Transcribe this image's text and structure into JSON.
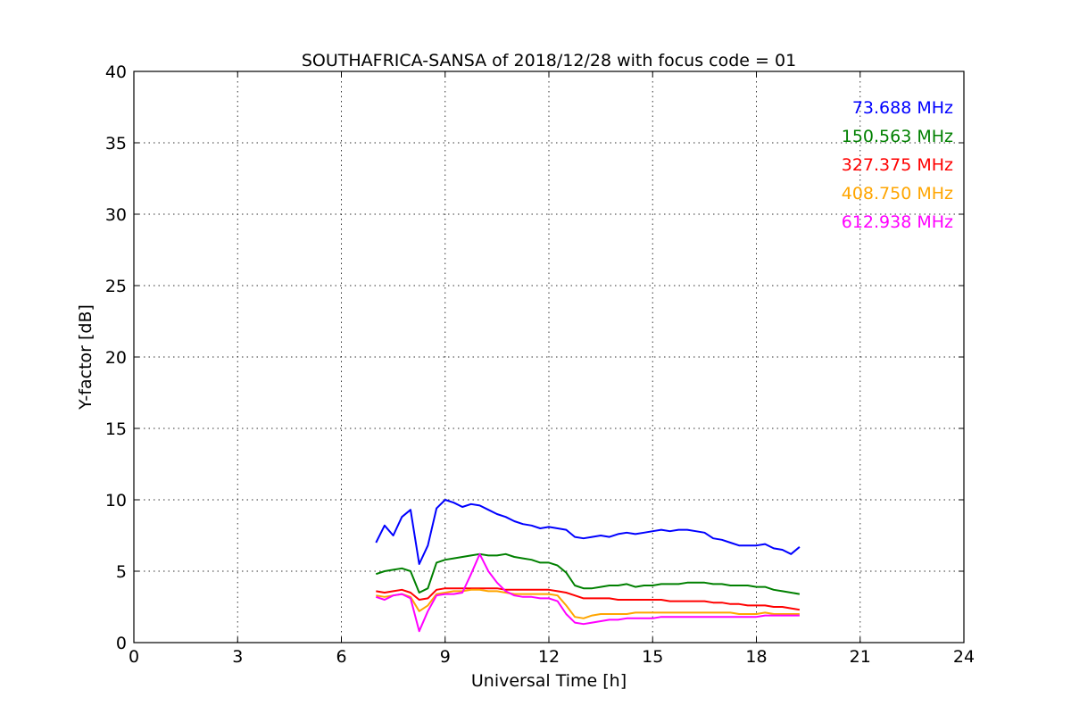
{
  "chart_data": {
    "type": "line",
    "title": "SOUTHAFRICA-SANSA of 2018/12/28 with focus code = 01",
    "xlabel": "Universal Time [h]",
    "ylabel": "Y-factor [dB]",
    "xlim": [
      0,
      24
    ],
    "ylim": [
      0,
      40
    ],
    "xticks": [
      0,
      3,
      6,
      9,
      12,
      15,
      18,
      21,
      24
    ],
    "yticks": [
      0,
      5,
      10,
      15,
      20,
      25,
      30,
      35,
      40
    ],
    "grid": true,
    "legend_position": "top-right",
    "x": [
      7.0,
      7.25,
      7.5,
      7.75,
      8.0,
      8.25,
      8.5,
      8.75,
      9.0,
      9.25,
      9.5,
      9.75,
      10.0,
      10.25,
      10.5,
      10.75,
      11.0,
      11.25,
      11.5,
      11.75,
      12.0,
      12.25,
      12.5,
      12.75,
      13.0,
      13.25,
      13.5,
      13.75,
      14.0,
      14.25,
      14.5,
      14.75,
      15.0,
      15.25,
      15.5,
      15.75,
      16.0,
      16.25,
      16.5,
      16.75,
      17.0,
      17.25,
      17.5,
      17.75,
      18.0,
      18.25,
      18.5,
      18.75,
      19.0,
      19.25
    ],
    "series": [
      {
        "name": "73.688 MHz",
        "color": "#0000ff",
        "values": [
          7.0,
          8.2,
          7.5,
          8.8,
          9.3,
          5.5,
          6.8,
          9.4,
          10.0,
          9.8,
          9.5,
          9.7,
          9.6,
          9.3,
          9.0,
          8.8,
          8.5,
          8.3,
          8.2,
          8.0,
          8.1,
          8.0,
          7.9,
          7.4,
          7.3,
          7.4,
          7.5,
          7.4,
          7.6,
          7.7,
          7.6,
          7.7,
          7.8,
          7.9,
          7.8,
          7.9,
          7.9,
          7.8,
          7.7,
          7.3,
          7.2,
          7.0,
          6.8,
          6.8,
          6.8,
          6.9,
          6.6,
          6.5,
          6.2,
          6.7
        ]
      },
      {
        "name": "150.563 MHz",
        "color": "#008000",
        "values": [
          4.8,
          5.0,
          5.1,
          5.2,
          5.0,
          3.5,
          3.8,
          5.6,
          5.8,
          5.9,
          6.0,
          6.1,
          6.2,
          6.1,
          6.1,
          6.2,
          6.0,
          5.9,
          5.8,
          5.6,
          5.6,
          5.4,
          4.9,
          4.0,
          3.8,
          3.8,
          3.9,
          4.0,
          4.0,
          4.1,
          3.9,
          4.0,
          4.0,
          4.1,
          4.1,
          4.1,
          4.2,
          4.2,
          4.2,
          4.1,
          4.1,
          4.0,
          4.0,
          4.0,
          3.9,
          3.9,
          3.7,
          3.6,
          3.5,
          3.4
        ]
      },
      {
        "name": "327.375 MHz",
        "color": "#ff0000",
        "values": [
          3.6,
          3.5,
          3.6,
          3.7,
          3.5,
          3.0,
          3.1,
          3.7,
          3.8,
          3.8,
          3.8,
          3.8,
          3.8,
          3.8,
          3.8,
          3.7,
          3.7,
          3.7,
          3.7,
          3.7,
          3.7,
          3.6,
          3.5,
          3.3,
          3.1,
          3.1,
          3.1,
          3.1,
          3.0,
          3.0,
          3.0,
          3.0,
          3.0,
          3.0,
          2.9,
          2.9,
          2.9,
          2.9,
          2.9,
          2.8,
          2.8,
          2.7,
          2.7,
          2.6,
          2.6,
          2.6,
          2.5,
          2.5,
          2.4,
          2.3
        ]
      },
      {
        "name": "408.750 MHz",
        "color": "#ffa500",
        "values": [
          3.3,
          3.2,
          3.3,
          3.4,
          3.2,
          2.2,
          2.6,
          3.4,
          3.5,
          3.6,
          3.6,
          3.7,
          3.7,
          3.6,
          3.6,
          3.5,
          3.4,
          3.4,
          3.4,
          3.4,
          3.4,
          3.3,
          2.6,
          1.8,
          1.7,
          1.9,
          2.0,
          2.0,
          2.0,
          2.0,
          2.1,
          2.1,
          2.1,
          2.1,
          2.1,
          2.1,
          2.1,
          2.1,
          2.1,
          2.1,
          2.1,
          2.1,
          2.0,
          2.0,
          2.0,
          2.1,
          2.0,
          2.0,
          2.0,
          2.0
        ]
      },
      {
        "name": "612.938 MHz",
        "color": "#ff00ff",
        "values": [
          3.2,
          3.0,
          3.3,
          3.4,
          3.1,
          0.8,
          2.2,
          3.3,
          3.4,
          3.4,
          3.5,
          4.8,
          6.2,
          5.0,
          4.2,
          3.6,
          3.3,
          3.2,
          3.2,
          3.1,
          3.1,
          2.9,
          2.0,
          1.4,
          1.3,
          1.4,
          1.5,
          1.6,
          1.6,
          1.7,
          1.7,
          1.7,
          1.7,
          1.8,
          1.8,
          1.8,
          1.8,
          1.8,
          1.8,
          1.8,
          1.8,
          1.8,
          1.8,
          1.8,
          1.8,
          1.9,
          1.9,
          1.9,
          1.9,
          1.9
        ]
      }
    ]
  }
}
